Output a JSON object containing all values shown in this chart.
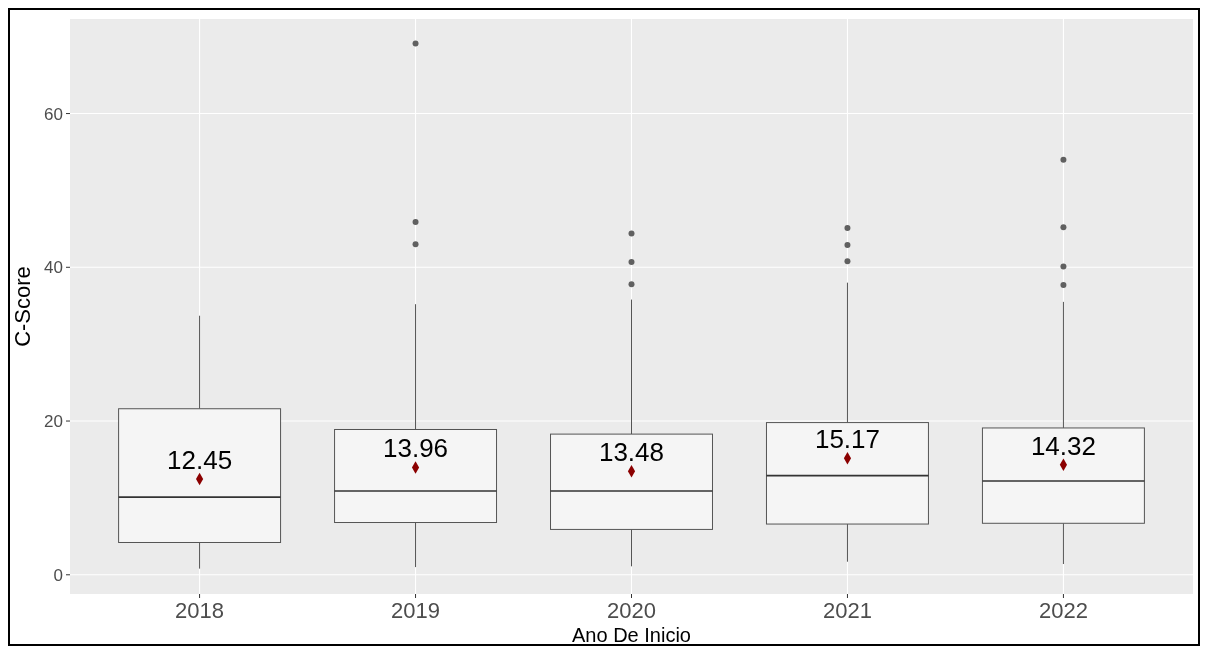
{
  "chart_data": {
    "type": "box",
    "xlabel": "Ano De Inicio",
    "ylabel": "C-Score",
    "categories": [
      "2018",
      "2019",
      "2020",
      "2021",
      "2022"
    ],
    "ylim": [
      -2.5,
      72.3
    ],
    "yticks": [
      0,
      20,
      40,
      60
    ],
    "grid": true,
    "color": "#f5f5f5",
    "boxes": [
      {
        "low": 0.8,
        "q1": 4.2,
        "median": 10.1,
        "q3": 21.6,
        "high": 33.7
      },
      {
        "low": 1.0,
        "q1": 6.8,
        "median": 10.9,
        "q3": 18.9,
        "high": 35.2,
        "outliers": [
          69.1,
          45.9,
          43.0
        ]
      },
      {
        "low": 1.1,
        "q1": 5.9,
        "median": 10.9,
        "q3": 18.3,
        "high": 35.8,
        "outliers": [
          44.4,
          40.7,
          37.8
        ]
      },
      {
        "low": 1.7,
        "q1": 6.6,
        "median": 12.9,
        "q3": 19.8,
        "high": 38.0,
        "outliers": [
          45.1,
          42.9,
          40.8
        ]
      },
      {
        "low": 1.4,
        "q1": 6.7,
        "median": 12.2,
        "q3": 19.1,
        "high": 35.5,
        "outliers": [
          54.0,
          45.2,
          40.1,
          37.7
        ]
      }
    ],
    "series": [
      {
        "type": "scatter",
        "values": [
          12.45,
          13.96,
          13.48,
          15.17,
          14.32
        ],
        "color": "#8b0000",
        "marker": "diamond"
      }
    ],
    "data_labels": true
  }
}
